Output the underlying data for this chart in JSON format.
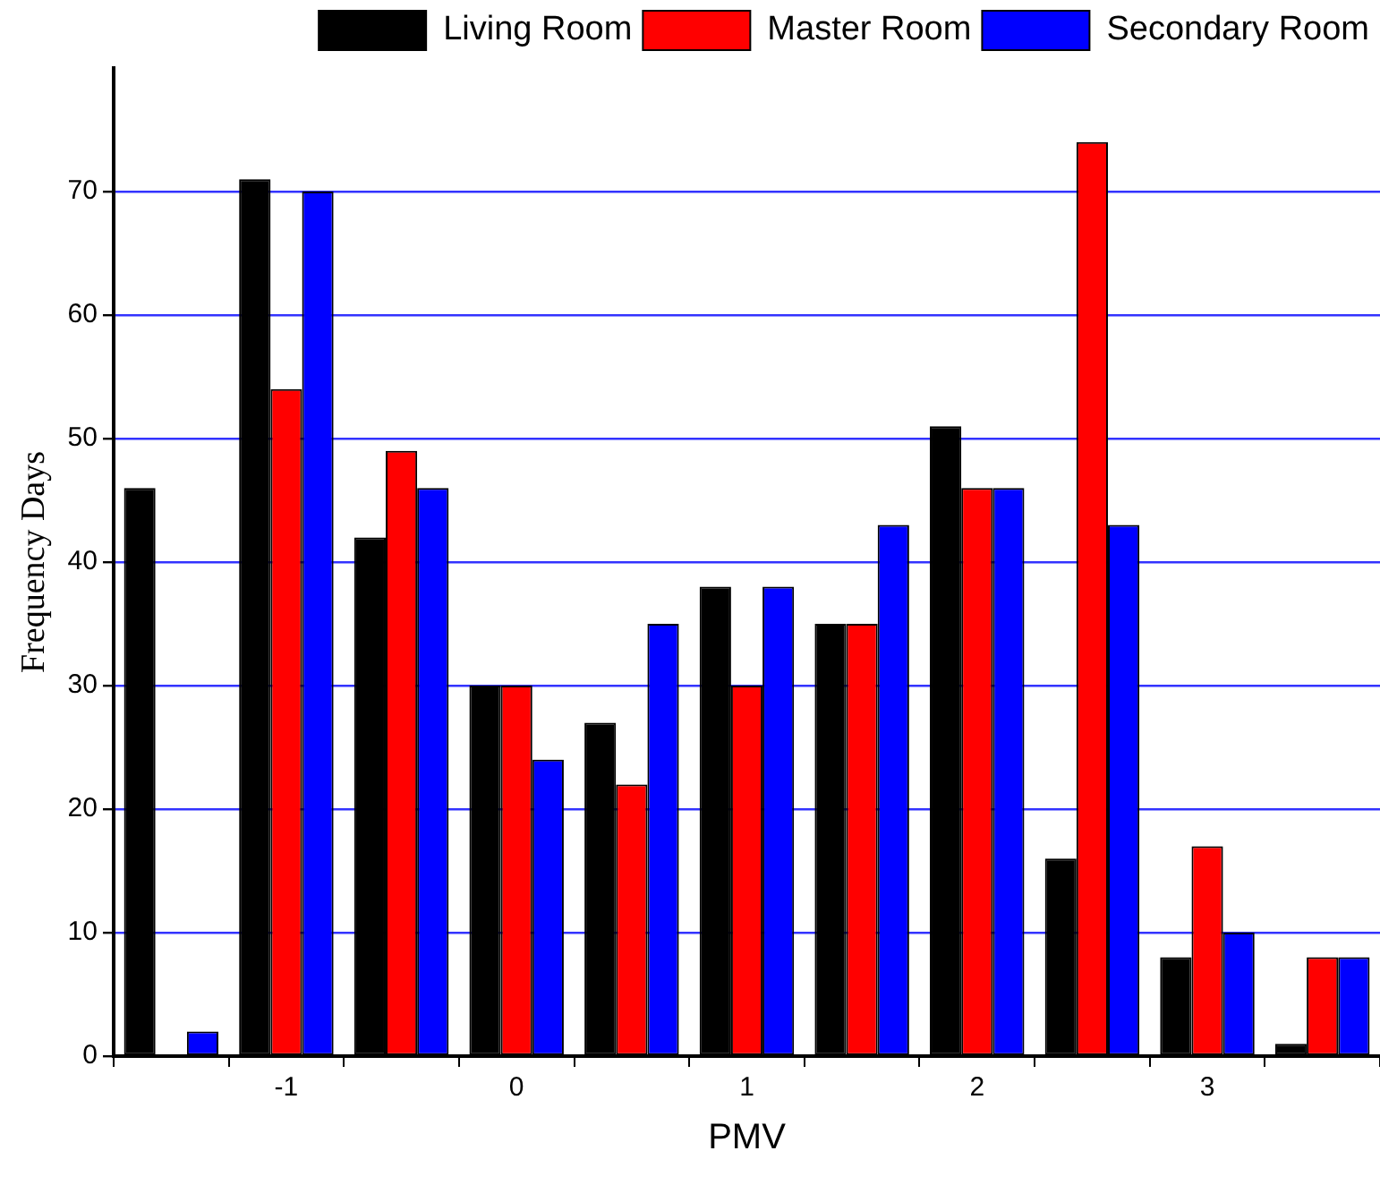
{
  "chart_data": {
    "type": "bar",
    "xlabel": "PMV",
    "ylabel": "Frequency Days",
    "categories": [
      null,
      "-1",
      null,
      "0",
      null,
      "1",
      null,
      "2",
      null,
      "3",
      null
    ],
    "series": [
      {
        "name": "Living Room",
        "color": "#000000",
        "values": [
          46,
          71,
          42,
          30,
          27,
          38,
          35,
          51,
          16,
          8,
          1
        ]
      },
      {
        "name": "Master Room",
        "color": "#ff0000",
        "values": [
          0,
          54,
          49,
          30,
          22,
          30,
          35,
          46,
          74,
          17,
          8
        ]
      },
      {
        "name": "Secondary Room",
        "color": "#0000ff",
        "values": [
          2,
          70,
          46,
          24,
          35,
          38,
          43,
          46,
          43,
          10,
          8
        ]
      }
    ],
    "ylim": [
      0,
      80
    ],
    "yticks": [
      0,
      10,
      20,
      30,
      40,
      50,
      60,
      70
    ],
    "grid": "y",
    "legend": "top right"
  }
}
